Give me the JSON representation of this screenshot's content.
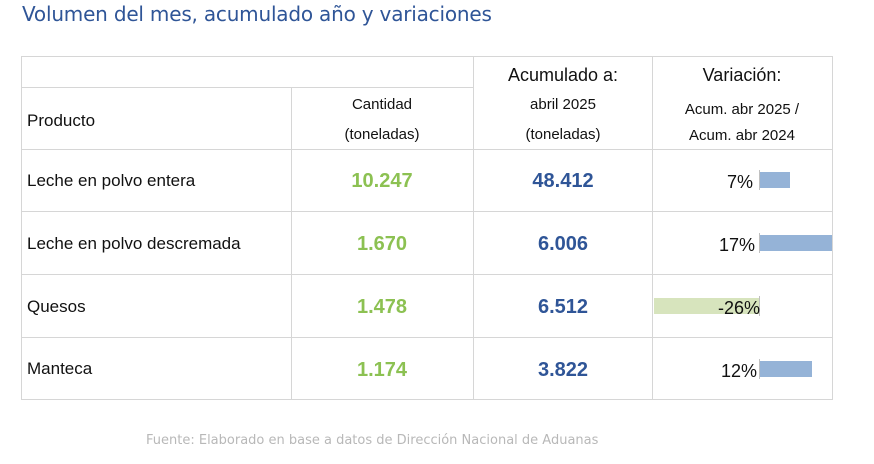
{
  "title": "Volumen del mes, acumulado año y variaciones",
  "header": {
    "producto": "Producto",
    "cantidad_1": "Cantidad",
    "cantidad_2": "(toneladas)",
    "acumulado_top": "Acumulado a:",
    "acumulado_1": "abril 2025",
    "acumulado_2": "(toneladas)",
    "variacion_top": "Variación:",
    "variacion_1": "Acum. abr 2025 /",
    "variacion_2": "Acum. abr 2024"
  },
  "rows": [
    {
      "producto": "Leche en polvo entera",
      "cantidad": "10.247",
      "acumulado": "48.412",
      "variacion": "7%",
      "variacion_value": 7
    },
    {
      "producto": "Leche en polvo descremada",
      "cantidad": "1.670",
      "acumulado": "6.006",
      "variacion": "17%",
      "variacion_value": 17
    },
    {
      "producto": "Quesos",
      "cantidad": "1.478",
      "acumulado": "6.512",
      "variacion": "-26%",
      "variacion_value": -26
    },
    {
      "producto": "Manteca",
      "cantidad": "1.174",
      "acumulado": "3.822",
      "variacion": "12%",
      "variacion_value": 12
    }
  ],
  "colors": {
    "title": "#2f5597",
    "cantidad": "#8cc152",
    "acumulado": "#2f5597",
    "bar_positive": "#95b3d7",
    "bar_negative": "#d7e4bd"
  },
  "source": "Fuente: Elaborado en base a datos de Dirección Nacional de Aduanas"
}
